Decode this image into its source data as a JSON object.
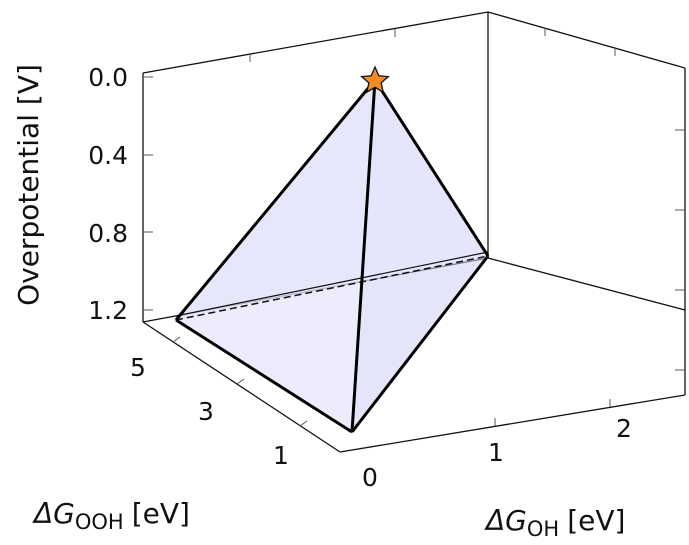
{
  "chart_data": {
    "type": "3d-surface",
    "z_axis": {
      "label": "Overpotential [V]",
      "ticks": [
        "0.0",
        "0.4",
        "0.8",
        "1.2"
      ],
      "reversed": true
    },
    "x_axis": {
      "label_main": "ΔG",
      "label_sub": "OH",
      "label_unit": "[eV]",
      "ticks": [
        "0",
        "1",
        "2"
      ]
    },
    "y_axis": {
      "label_main": "ΔG",
      "label_sub": "OOH",
      "label_unit": "[eV]",
      "ticks": [
        "1",
        "3",
        "5"
      ]
    },
    "vertices": [
      {
        "name": "apex",
        "marker": "star",
        "overpotential": 0.0
      },
      {
        "name": "front",
        "overpotential": 1.3
      },
      {
        "name": "left",
        "overpotential": 1.3
      },
      {
        "name": "right",
        "overpotential": 1.05
      }
    ],
    "grid": false,
    "colors": {
      "fill": "#ddddff",
      "edge": "#000000",
      "star": "#f28c28"
    }
  }
}
